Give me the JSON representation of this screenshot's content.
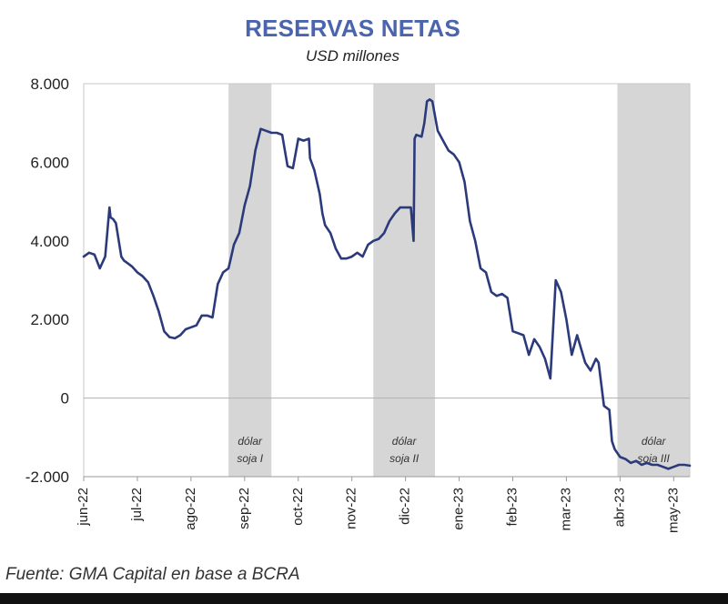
{
  "chart_data": {
    "type": "line",
    "title": "RESERVAS NETAS",
    "subtitle": "USD millones",
    "xlabel": "",
    "ylabel": "",
    "ylim": [
      -2000,
      8000
    ],
    "yticks": [
      -2000,
      0,
      2000,
      4000,
      6000,
      8000
    ],
    "ytick_labels": [
      "-2.000",
      "0",
      "2.000",
      "4.000",
      "6.000",
      "8.000"
    ],
    "xlim": [
      0,
      11.3
    ],
    "xticks": [
      0,
      1,
      2,
      3,
      4,
      5,
      6,
      7,
      8,
      9,
      10,
      11
    ],
    "xtick_labels": [
      "jun-22",
      "jul-22",
      "ago-22",
      "sep-22",
      "oct-22",
      "nov-22",
      "dic-22",
      "ene-23",
      "feb-23",
      "mar-23",
      "abr-23",
      "may-23"
    ],
    "shaded_periods": [
      {
        "start": 2.7,
        "end": 3.5,
        "label_line1": "dólar",
        "label_line2": "soja I"
      },
      {
        "start": 5.4,
        "end": 6.55,
        "label_line1": "dólar",
        "label_line2": "soja II"
      },
      {
        "start": 9.95,
        "end": 11.3,
        "label_line1": "dólar",
        "label_line2": "soja III"
      }
    ],
    "series": [
      {
        "name": "Reservas netas",
        "color": "#2b3a7a",
        "x": [
          0,
          0.1,
          0.2,
          0.3,
          0.4,
          0.48,
          0.5,
          0.55,
          0.6,
          0.7,
          0.75,
          0.8,
          0.9,
          1.0,
          1.1,
          1.2,
          1.3,
          1.4,
          1.5,
          1.6,
          1.7,
          1.8,
          1.9,
          2.0,
          2.1,
          2.2,
          2.3,
          2.4,
          2.5,
          2.6,
          2.7,
          2.75,
          2.8,
          2.9,
          3.0,
          3.1,
          3.2,
          3.3,
          3.4,
          3.5,
          3.6,
          3.7,
          3.8,
          3.9,
          4.0,
          4.1,
          4.2,
          4.22,
          4.3,
          4.4,
          4.45,
          4.5,
          4.6,
          4.7,
          4.8,
          4.9,
          5.0,
          5.1,
          5.2,
          5.3,
          5.4,
          5.5,
          5.6,
          5.7,
          5.8,
          5.9,
          6.0,
          6.1,
          6.15,
          6.17,
          6.2,
          6.3,
          6.35,
          6.4,
          6.45,
          6.5,
          6.6,
          6.7,
          6.8,
          6.9,
          7.0,
          7.1,
          7.2,
          7.3,
          7.4,
          7.5,
          7.6,
          7.7,
          7.8,
          7.9,
          8.0,
          8.1,
          8.2,
          8.3,
          8.4,
          8.5,
          8.6,
          8.7,
          8.8,
          8.9,
          9.0,
          9.1,
          9.2,
          9.35,
          9.4,
          9.45,
          9.55,
          9.6,
          9.7,
          9.8,
          9.85,
          9.9,
          10.0,
          10.1,
          10.2,
          10.3,
          10.4,
          10.5,
          10.6,
          10.7,
          10.8,
          10.9,
          11.0,
          11.1,
          11.2,
          11.3
        ],
        "values": [
          3600,
          3700,
          3650,
          3300,
          3600,
          4850,
          4600,
          4550,
          4450,
          3600,
          3500,
          3450,
          3350,
          3200,
          3100,
          2950,
          2600,
          2200,
          1700,
          1550,
          1520,
          1600,
          1750,
          1800,
          1850,
          2100,
          2100,
          2050,
          2900,
          3200,
          3300,
          3600,
          3900,
          4200,
          4900,
          5400,
          6300,
          6850,
          6800,
          6750,
          6750,
          6700,
          5900,
          5850,
          6600,
          6550,
          6600,
          6100,
          5800,
          5200,
          4700,
          4400,
          4200,
          3800,
          3550,
          3550,
          3600,
          3700,
          3600,
          3900,
          4000,
          4050,
          4200,
          4500,
          4700,
          4850,
          4850,
          4850,
          4000,
          6600,
          6700,
          6650,
          7000,
          7550,
          7600,
          7550,
          6800,
          6550,
          6300,
          6200,
          6000,
          5500,
          4500,
          4000,
          3300,
          3200,
          2700,
          2600,
          2650,
          2550,
          1700,
          1650,
          1600,
          1100,
          1500,
          1300,
          1000,
          500,
          3000,
          2700,
          2000,
          1100,
          1600,
          900,
          800,
          700,
          1000,
          900,
          -200,
          -300,
          -1100,
          -1300,
          -1500,
          -1550,
          -1650,
          -1600,
          -1700,
          -1650,
          -1700,
          -1700,
          -1750,
          -1800,
          -1750,
          -1700,
          -1700,
          -1720
        ]
      }
    ],
    "source": "Fuente: GMA Capital en base a BCRA"
  }
}
